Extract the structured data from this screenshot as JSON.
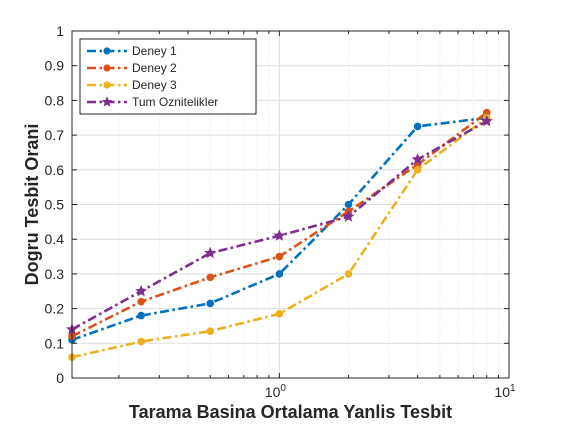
{
  "chart_data": {
    "type": "line",
    "xscale": "log",
    "xlabel": "Tarama Basina Ortalama Yanlis Tesbit",
    "ylabel": "Dogru Tesbit Orani",
    "xlim": [
      0.125,
      10
    ],
    "ylim": [
      0,
      1
    ],
    "x": [
      0.125,
      0.25,
      0.5,
      1,
      2,
      4,
      8
    ],
    "xticks": [
      1,
      10
    ],
    "xtick_labels": [
      {
        "base": "10",
        "exp": "0"
      },
      {
        "base": "10",
        "exp": "1"
      }
    ],
    "yticks": [
      0,
      0.1,
      0.2,
      0.3,
      0.4,
      0.5,
      0.6,
      0.7,
      0.8,
      0.9,
      1
    ],
    "ytick_labels": [
      "0",
      "0.1",
      "0.2",
      "0.3",
      "0.4",
      "0.5",
      "0.6",
      "0.7",
      "0.8",
      "0.9",
      "1"
    ],
    "grid": true,
    "legend_position": "top-left",
    "series": [
      {
        "name": "Deney 1",
        "color": "#0072BD",
        "marker": "circle",
        "values": [
          0.11,
          0.18,
          0.215,
          0.3,
          0.5,
          0.725,
          0.75
        ]
      },
      {
        "name": "Deney 2",
        "color": "#D95319",
        "marker": "circle",
        "values": [
          0.12,
          0.22,
          0.29,
          0.35,
          0.48,
          0.615,
          0.765
        ]
      },
      {
        "name": "Deney 3",
        "color": "#EDB120",
        "marker": "circle",
        "values": [
          0.06,
          0.105,
          0.135,
          0.185,
          0.3,
          0.6,
          0.75
        ]
      },
      {
        "name": "Tum Oznitelikler",
        "color": "#7E2F8E",
        "marker": "star",
        "values": [
          0.14,
          0.25,
          0.36,
          0.41,
          0.465,
          0.63,
          0.74
        ]
      }
    ]
  }
}
